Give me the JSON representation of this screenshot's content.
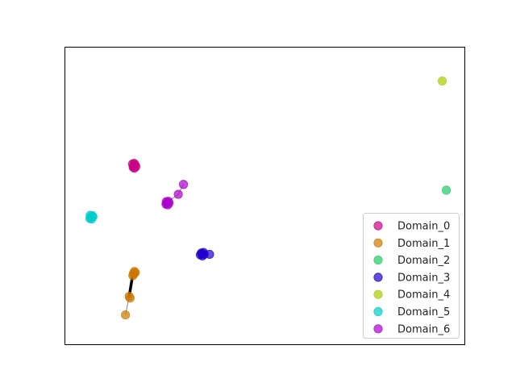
{
  "chart_data": {
    "type": "scatter",
    "title": "",
    "xlabel": "",
    "ylabel": "",
    "xlim": [
      -2.5,
      10.5
    ],
    "ylim": [
      -6.7,
      2.6
    ],
    "grid": false,
    "axes_ticks": false,
    "legend_position": "lower-right",
    "series": [
      {
        "name": "Domain_0",
        "color": "#cc0088",
        "points": [
          [
            -0.27,
            -1.12
          ],
          [
            -0.23,
            -1.07
          ],
          [
            -0.31,
            -1.05
          ],
          [
            -0.25,
            -1.18
          ],
          [
            -0.2,
            -1.13
          ],
          [
            -0.29,
            -1.15
          ],
          [
            -0.24,
            -1.1
          ],
          [
            -0.26,
            -1.03
          ]
        ]
      },
      {
        "name": "Domain_1",
        "color": "#cc7700",
        "points": [
          [
            -0.27,
            -4.5
          ],
          [
            -0.22,
            -4.45
          ],
          [
            -0.3,
            -4.55
          ],
          [
            -0.25,
            -4.42
          ],
          [
            -0.28,
            -4.48
          ],
          [
            -0.42,
            -5.2
          ],
          [
            -0.39,
            -5.25
          ],
          [
            -0.54,
            -5.78
          ]
        ]
      },
      {
        "name": "Domain_2",
        "color": "#22cc66",
        "points": [
          [
            9.91,
            -1.87
          ]
        ]
      },
      {
        "name": "Domain_3",
        "color": "#2200cc",
        "points": [
          [
            1.95,
            -3.87
          ],
          [
            2.0,
            -3.82
          ],
          [
            1.9,
            -3.9
          ],
          [
            1.97,
            -3.93
          ],
          [
            2.02,
            -3.88
          ],
          [
            1.93,
            -3.84
          ],
          [
            2.2,
            -3.88
          ]
        ]
      },
      {
        "name": "Domain_4",
        "color": "#aacc00",
        "points": [
          [
            9.78,
            1.55
          ]
        ]
      },
      {
        "name": "Domain_5",
        "color": "#00cccc",
        "points": [
          [
            -1.67,
            -2.72
          ],
          [
            -1.62,
            -2.67
          ],
          [
            -1.7,
            -2.76
          ],
          [
            -1.64,
            -2.77
          ],
          [
            -1.6,
            -2.7
          ],
          [
            -1.69,
            -2.66
          ]
        ]
      },
      {
        "name": "Domain_6",
        "color": "#aa00cc",
        "points": [
          [
            0.81,
            -2.27
          ],
          [
            0.86,
            -2.22
          ],
          [
            0.78,
            -2.31
          ],
          [
            0.84,
            -2.33
          ],
          [
            0.88,
            -2.27
          ],
          [
            0.79,
            -2.23
          ],
          [
            1.18,
            -2.0
          ],
          [
            1.35,
            -1.69
          ]
        ]
      }
    ],
    "connectors": [
      {
        "series": "Domain_1",
        "from": [
          -0.3,
          -4.5
        ],
        "to": [
          -0.42,
          -5.2
        ],
        "color": "#000000",
        "weight": "thick"
      },
      {
        "series": "Domain_1",
        "from": [
          -0.42,
          -5.2
        ],
        "to": [
          -0.54,
          -5.78
        ],
        "color": "#888888",
        "weight": "thin"
      },
      {
        "series": "Domain_6",
        "from": [
          0.86,
          -2.22
        ],
        "to": [
          1.18,
          -2.0
        ],
        "color": "#888888",
        "weight": "thin"
      },
      {
        "series": "Domain_6",
        "from": [
          1.18,
          -2.0
        ],
        "to": [
          1.35,
          -1.69
        ],
        "color": "#888888",
        "weight": "thin"
      }
    ]
  }
}
